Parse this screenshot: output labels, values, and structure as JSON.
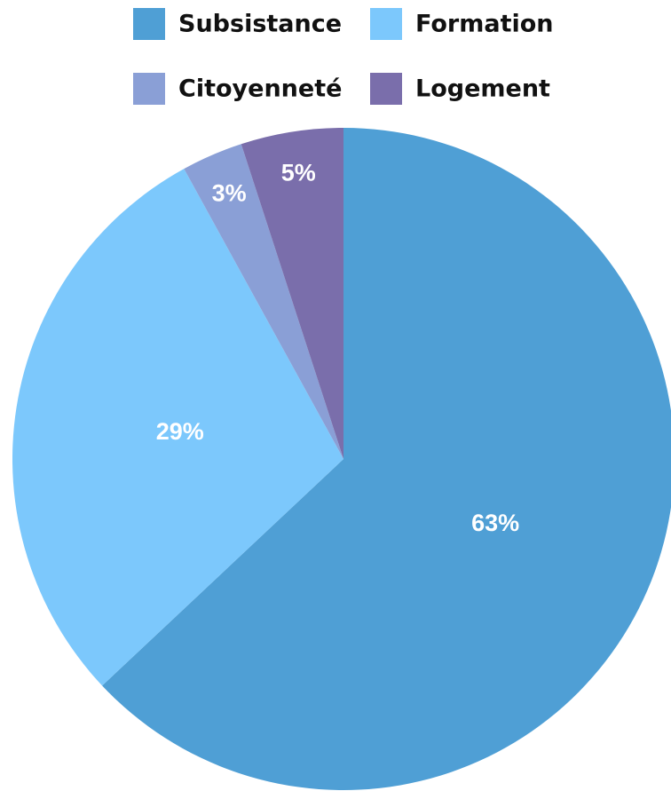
{
  "chart_data": {
    "type": "pie",
    "categories": [
      "Subsistance",
      "Formation",
      "Citoyenneté",
      "Logement"
    ],
    "values": [
      63,
      29,
      3,
      5
    ],
    "value_labels": [
      "63%",
      "29%",
      "3%",
      "5%"
    ],
    "colors": [
      "#4f9fd5",
      "#7cc8fc",
      "#8a9fd6",
      "#7a6eab"
    ]
  }
}
